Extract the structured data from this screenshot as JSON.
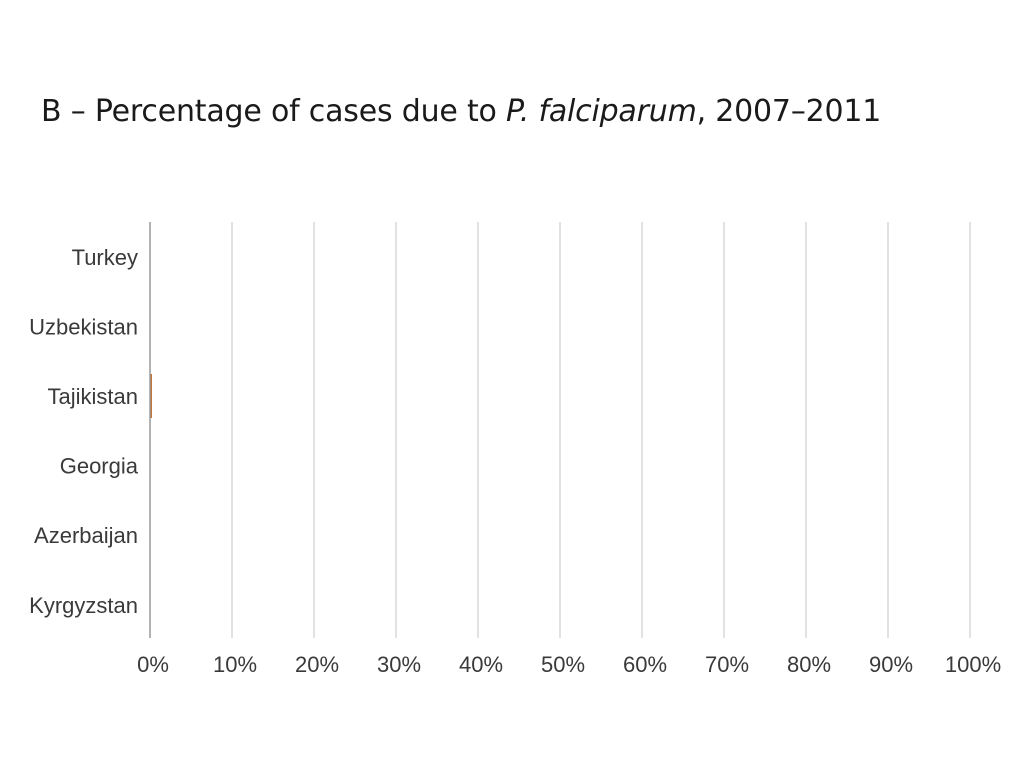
{
  "title": {
    "prefix": "B – Percentage of cases due to ",
    "italic": "P. falciparum",
    "suffix": ", 2007–2011"
  },
  "chart_data": {
    "type": "bar",
    "orientation": "horizontal",
    "title": "B – Percentage of cases due to P. falciparum, 2007–2011",
    "categories": [
      "Turkey",
      "Uzbekistan",
      "Tajikistan",
      "Georgia",
      "Azerbaijan",
      "Kyrgyzstan"
    ],
    "values": [
      0,
      0,
      0.2,
      0,
      0,
      0
    ],
    "xlim": [
      0,
      100
    ],
    "x_ticks": [
      0,
      10,
      20,
      30,
      40,
      50,
      60,
      70,
      80,
      90,
      100
    ],
    "x_tick_labels": [
      "0%",
      "10%",
      "20%",
      "30%",
      "40%",
      "50%",
      "60%",
      "70%",
      "80%",
      "90%",
      "100%"
    ],
    "grid": "vertical",
    "legend": "none",
    "colors": {
      "bar": "#c0763a",
      "grid": "#d9d9d9",
      "axis": "#9a9a9a"
    }
  }
}
